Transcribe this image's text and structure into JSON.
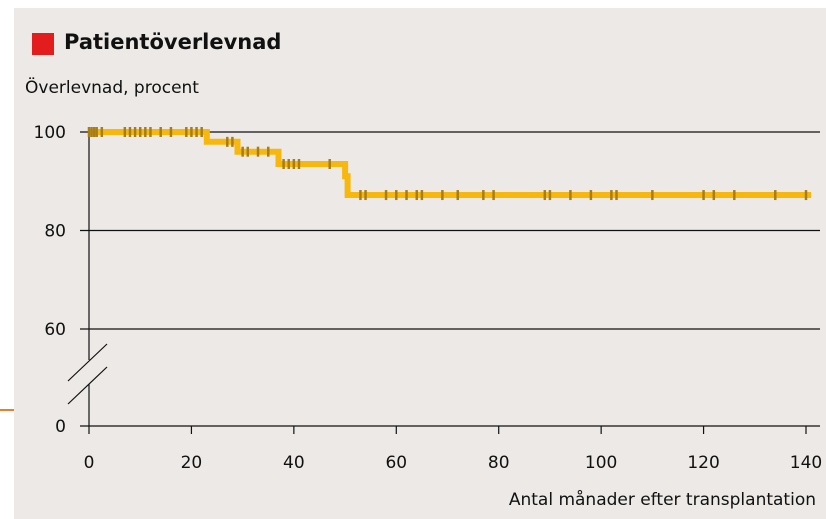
{
  "title": "Patientöverlevnad",
  "colors": {
    "accent_square": "#e31d1d",
    "curve": "#f7b70c",
    "censor": "#a77e16",
    "panel": "#ece9e6",
    "orange_mark": "#ef7a2a"
  },
  "chart_data": {
    "type": "line",
    "title": "Patientöverlevnad",
    "ylabel": "Överlevnad, procent",
    "xlabel": "Antal månader efter transplantation",
    "xlim": [
      0,
      140
    ],
    "x_ticks": [
      0,
      20,
      40,
      60,
      80,
      100,
      120,
      140
    ],
    "y_ticks": [
      0,
      60,
      80,
      100
    ],
    "y_axis_break": true,
    "grid": "horizontal at 60, 80, 100",
    "series": [
      {
        "step_points": [
          [
            0,
            100
          ],
          [
            23,
            100
          ],
          [
            23,
            98
          ],
          [
            29,
            98
          ],
          [
            29,
            96
          ],
          [
            37,
            96
          ],
          [
            37,
            93.5
          ],
          [
            50,
            93.5
          ],
          [
            50,
            91
          ],
          [
            50.5,
            91
          ],
          [
            50.5,
            87.2
          ],
          [
            141,
            87.2
          ]
        ],
        "censor_marks": [
          [
            0,
            100
          ],
          [
            0.5,
            100
          ],
          [
            1,
            100
          ],
          [
            1.5,
            100
          ],
          [
            2.5,
            100
          ],
          [
            7,
            100
          ],
          [
            8,
            100
          ],
          [
            9,
            100
          ],
          [
            10,
            100
          ],
          [
            11,
            100
          ],
          [
            12,
            100
          ],
          [
            14,
            100
          ],
          [
            16,
            100
          ],
          [
            19,
            100
          ],
          [
            20,
            100
          ],
          [
            21,
            100
          ],
          [
            22,
            100
          ],
          [
            27,
            98
          ],
          [
            28,
            98
          ],
          [
            30,
            96
          ],
          [
            31,
            96
          ],
          [
            33,
            96
          ],
          [
            35,
            96
          ],
          [
            38,
            93.5
          ],
          [
            39,
            93.5
          ],
          [
            40,
            93.5
          ],
          [
            41,
            93.5
          ],
          [
            47,
            93.5
          ],
          [
            53,
            87.2
          ],
          [
            54,
            87.2
          ],
          [
            58,
            87.2
          ],
          [
            60,
            87.2
          ],
          [
            62,
            87.2
          ],
          [
            64,
            87.2
          ],
          [
            65,
            87.2
          ],
          [
            69,
            87.2
          ],
          [
            72,
            87.2
          ],
          [
            77,
            87.2
          ],
          [
            79,
            87.2
          ],
          [
            89,
            87.2
          ],
          [
            90,
            87.2
          ],
          [
            94,
            87.2
          ],
          [
            98,
            87.2
          ],
          [
            102,
            87.2
          ],
          [
            103,
            87.2
          ],
          [
            110,
            87.2
          ],
          [
            120,
            87.2
          ],
          [
            122,
            87.2
          ],
          [
            126,
            87.2
          ],
          [
            134,
            87.2
          ],
          [
            140,
            87.2
          ]
        ]
      }
    ]
  }
}
